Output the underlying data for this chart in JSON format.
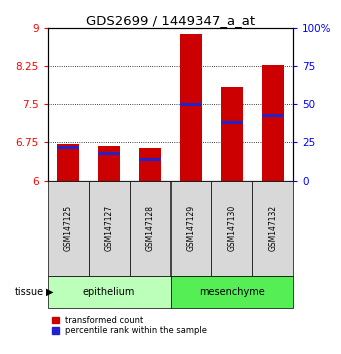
{
  "title": "GDS2699 / 1449347_a_at",
  "samples": [
    "GSM147125",
    "GSM147127",
    "GSM147128",
    "GSM147129",
    "GSM147130",
    "GSM147132"
  ],
  "transformed_counts": [
    6.72,
    6.68,
    6.65,
    8.88,
    7.84,
    8.28
  ],
  "percentile_ranks": [
    22,
    18,
    14,
    50,
    38,
    43
  ],
  "groups": [
    "epithelium",
    "epithelium",
    "epithelium",
    "mesenchyme",
    "mesenchyme",
    "mesenchyme"
  ],
  "epithelium_color": "#bbffbb",
  "mesenchyme_color": "#55ee55",
  "sample_box_color": "#d8d8d8",
  "bar_color_red": "#cc0000",
  "bar_color_blue": "#2222cc",
  "ylim_left": [
    6.0,
    9.0
  ],
  "ylim_right": [
    0,
    100
  ],
  "yticks_left": [
    6.0,
    6.75,
    7.5,
    8.25,
    9.0
  ],
  "yticks_right": [
    0,
    25,
    50,
    75,
    100
  ],
  "grid_ticks": [
    6.75,
    7.5,
    8.25
  ],
  "bar_width": 0.55
}
